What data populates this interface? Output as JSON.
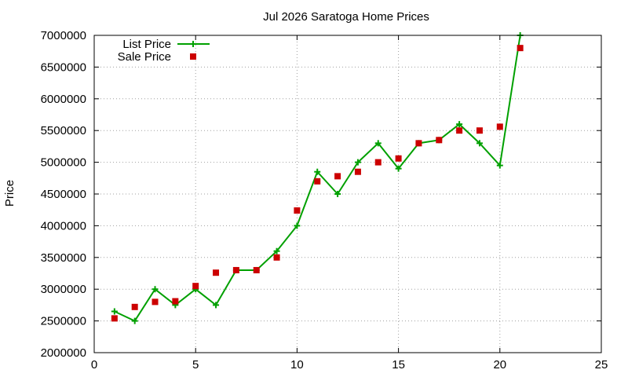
{
  "chart_data": {
    "type": "scatter",
    "title": "Jul 2026 Saratoga Home Prices",
    "xlabel": "",
    "ylabel": "Price",
    "xlim": [
      0,
      25
    ],
    "ylim": [
      2000000,
      7000000
    ],
    "xticks": [
      0,
      5,
      10,
      15,
      20,
      25
    ],
    "yticks": [
      2000000,
      2500000,
      3000000,
      3500000,
      4000000,
      4500000,
      5000000,
      5500000,
      6000000,
      6500000,
      7000000
    ],
    "grid": true,
    "legend_position": "top-left",
    "series": [
      {
        "name": "List Price",
        "style": "linespoints",
        "marker": "plus",
        "color": "#00a000",
        "x": [
          1,
          2,
          3,
          4,
          5,
          6,
          7,
          8,
          9,
          10,
          11,
          12,
          13,
          14,
          15,
          16,
          17,
          18,
          19,
          20,
          21
        ],
        "y": [
          2650000,
          2500000,
          3000000,
          2750000,
          3000000,
          2750000,
          3300000,
          3300000,
          3600000,
          4000000,
          4850000,
          4500000,
          5000000,
          5300000,
          4900000,
          5300000,
          5350000,
          5600000,
          5300000,
          4950000,
          7000000
        ]
      },
      {
        "name": "Sale Price",
        "style": "points",
        "marker": "square",
        "color": "#cc0000",
        "x": [
          1,
          2,
          3,
          4,
          5,
          6,
          7,
          8,
          9,
          10,
          11,
          12,
          13,
          14,
          15,
          16,
          17,
          18,
          19,
          20,
          21
        ],
        "y": [
          2540000,
          2720000,
          2800000,
          2810000,
          3050000,
          3260000,
          3300000,
          3300000,
          3500000,
          4240000,
          4700000,
          4780000,
          4850000,
          5000000,
          5060000,
          5300000,
          5350000,
          5500000,
          5500000,
          5560000,
          6800000
        ]
      }
    ]
  }
}
